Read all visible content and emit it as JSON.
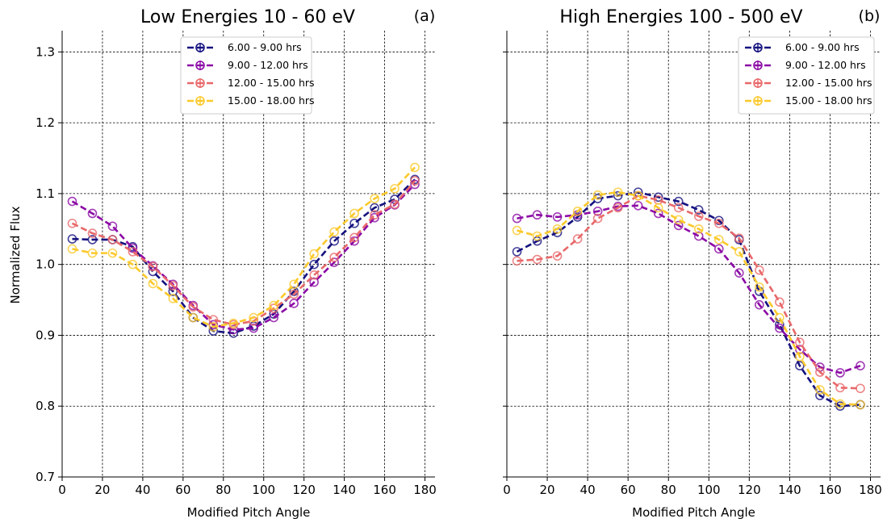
{
  "ylabel": "Normalized Flux",
  "chart_data": [
    {
      "type": "line",
      "title": "Low Energies 10 - 60 eV",
      "panel_label": "(a)",
      "xlabel": "Modified Pitch Angle",
      "ylabel": "Normalized Flux",
      "xlim": [
        0,
        185
      ],
      "ylim": [
        0.7,
        1.33
      ],
      "xticks": [
        "0",
        "20",
        "40",
        "60",
        "80",
        "100",
        "120",
        "140",
        "160",
        "180"
      ],
      "yticks": [
        "0.7",
        "0.8",
        "0.9",
        "1.0",
        "1.1",
        "1.2",
        "1.3"
      ],
      "grid": true,
      "legend_position": "top-center",
      "x": [
        5,
        15,
        25,
        35,
        45,
        55,
        65,
        75,
        85,
        95,
        105,
        115,
        125,
        135,
        145,
        155,
        165,
        175
      ],
      "series": [
        {
          "name": "6.00 - 9.00 hrs",
          "color": "#15117f",
          "values": [
            1.036,
            1.035,
            1.035,
            1.025,
            0.99,
            0.962,
            0.925,
            0.906,
            0.903,
            0.913,
            0.93,
            0.962,
            1.0,
            1.033,
            1.058,
            1.08,
            1.092,
            1.12
          ]
        },
        {
          "name": "9.00 - 12.00 hrs",
          "color": "#8b0aa5",
          "values": [
            1.089,
            1.072,
            1.054,
            1.023,
            0.998,
            0.972,
            0.942,
            0.915,
            0.908,
            0.91,
            0.925,
            0.945,
            0.975,
            1.003,
            1.033,
            1.066,
            1.084,
            1.113
          ]
        },
        {
          "name": "12.00 - 15.00 hrs",
          "color": "#e8686a",
          "values": [
            1.058,
            1.044,
            1.035,
            1.018,
            0.997,
            0.97,
            0.94,
            0.922,
            0.915,
            0.92,
            0.938,
            0.958,
            0.985,
            1.01,
            1.038,
            1.07,
            1.085,
            1.118
          ]
        },
        {
          "name": "15.00 - 18.00 hrs",
          "color": "#fbc92a",
          "values": [
            1.022,
            1.016,
            1.016,
            1.0,
            0.973,
            0.952,
            0.925,
            0.912,
            0.917,
            0.925,
            0.942,
            0.972,
            1.015,
            1.046,
            1.072,
            1.093,
            1.107,
            1.137
          ]
        }
      ]
    },
    {
      "type": "line",
      "title": "High Energies 100 - 500 eV",
      "panel_label": "(b)",
      "xlabel": "Modified Pitch Angle",
      "ylabel": "",
      "xlim": [
        0,
        185
      ],
      "ylim": [
        0.7,
        1.33
      ],
      "xticks": [
        "0",
        "20",
        "40",
        "60",
        "80",
        "100",
        "120",
        "140",
        "160",
        "180"
      ],
      "yticks": [],
      "grid": true,
      "legend_position": "top-right",
      "x": [
        5,
        15,
        25,
        35,
        45,
        55,
        65,
        75,
        85,
        95,
        105,
        115,
        125,
        135,
        145,
        155,
        165,
        175
      ],
      "series": [
        {
          "name": "6.00 - 9.00 hrs",
          "color": "#15117f",
          "values": [
            1.018,
            1.033,
            1.045,
            1.067,
            1.093,
            1.097,
            1.102,
            1.095,
            1.089,
            1.077,
            1.062,
            1.035,
            0.962,
            0.915,
            0.857,
            0.815,
            0.8,
            0.802
          ]
        },
        {
          "name": "9.00 - 12.00 hrs",
          "color": "#8b0aa5",
          "values": [
            1.065,
            1.07,
            1.067,
            1.07,
            1.075,
            1.082,
            1.083,
            1.072,
            1.055,
            1.04,
            1.022,
            0.988,
            0.943,
            0.91,
            0.88,
            0.855,
            0.847,
            0.857
          ]
        },
        {
          "name": "12.00 - 15.00 hrs",
          "color": "#e8686a",
          "values": [
            1.005,
            1.007,
            1.012,
            1.036,
            1.065,
            1.08,
            1.097,
            1.091,
            1.08,
            1.068,
            1.058,
            1.037,
            0.992,
            0.947,
            0.89,
            0.848,
            0.826,
            0.825
          ]
        },
        {
          "name": "15.00 - 18.00 hrs",
          "color": "#fbc92a",
          "values": [
            1.048,
            1.04,
            1.05,
            1.075,
            1.098,
            1.102,
            1.097,
            1.08,
            1.063,
            1.05,
            1.035,
            1.018,
            0.968,
            0.925,
            0.87,
            0.823,
            0.803,
            0.802
          ]
        }
      ]
    }
  ]
}
